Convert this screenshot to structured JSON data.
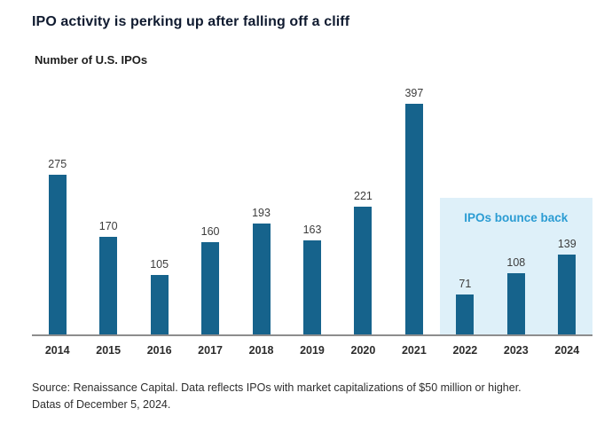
{
  "chart_data": {
    "type": "bar",
    "title": "IPO activity is perking up after falling off a cliff",
    "subtitle": "Number of U.S. IPOs",
    "categories": [
      "2014",
      "2015",
      "2016",
      "2017",
      "2018",
      "2019",
      "2020",
      "2021",
      "2022",
      "2023",
      "2024"
    ],
    "values": [
      275,
      170,
      105,
      160,
      193,
      163,
      221,
      397,
      71,
      108,
      139
    ],
    "xlabel": "",
    "ylabel": "Number of U.S. IPOs",
    "ylim": [
      0,
      420
    ],
    "grid": false,
    "legend": false,
    "bar_color": "#16638c",
    "annotation": {
      "text": "IPOs bounce back",
      "applies_to": [
        "2022",
        "2023",
        "2024"
      ],
      "highlight_color": "#def0f9",
      "text_color": "#2b9cd3"
    }
  },
  "footer": {
    "line1": "Source: Renaissance Capital. Data reflects IPOs with market capitalizations of $50 million or higher.",
    "line2": "Datas of December 5, 2024."
  }
}
